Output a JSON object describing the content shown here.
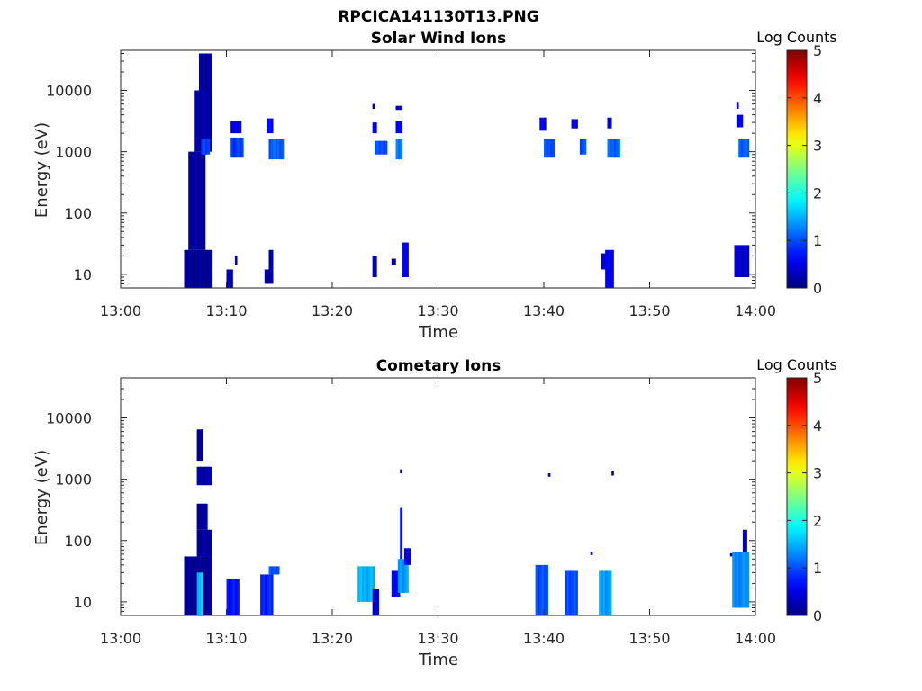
{
  "figure": {
    "title": "RPCICA141130T13.PNG"
  },
  "colors": {
    "colormap": "jet",
    "background": "#ffffff",
    "axes": "#262626"
  },
  "chart_data": [
    {
      "type": "heatmap",
      "title": "Solar Wind Ions",
      "xlabel": "Time",
      "ylabel": "Energy (eV)",
      "yscale": "log",
      "xlim": [
        "13:00",
        "14:00"
      ],
      "ylim": [
        6,
        45000
      ],
      "xticks": [
        "13:00",
        "13:10",
        "13:20",
        "13:30",
        "13:40",
        "13:50",
        "14:00"
      ],
      "yticks": [
        {
          "value": 10,
          "label": "10"
        },
        {
          "value": 100,
          "label": "100"
        },
        {
          "value": 1000,
          "label": "1000"
        },
        {
          "value": 10000,
          "label": "10000"
        }
      ],
      "colorbar": {
        "label": "Log Counts",
        "range": [
          0,
          5
        ],
        "ticks": [
          "0",
          "1",
          "2",
          "3",
          "4",
          "5"
        ]
      },
      "grid": false,
      "cell_seconds": 12,
      "cells": [
        {
          "t_start": "13:06:00",
          "t_end": "13:08:40",
          "e_min": 6,
          "e_max": 25,
          "logc": 0.1
        },
        {
          "t_start": "13:06:24",
          "t_end": "13:08:00",
          "e_min": 25,
          "e_max": 1000,
          "logc": 0.15
        },
        {
          "t_start": "13:07:00",
          "t_end": "13:08:36",
          "e_min": 1000,
          "e_max": 10000,
          "logc": 0.2
        },
        {
          "t_start": "13:07:24",
          "t_end": "13:08:36",
          "e_min": 10000,
          "e_max": 40000,
          "logc": 0.15
        },
        {
          "t_start": "13:07:36",
          "t_end": "13:08:24",
          "e_min": 900,
          "e_max": 1600,
          "logc": 0.9
        },
        {
          "t_start": "13:10:24",
          "t_end": "13:11:24",
          "e_min": 2000,
          "e_max": 3200,
          "logc": 0.5
        },
        {
          "t_start": "13:10:24",
          "t_end": "13:11:36",
          "e_min": 800,
          "e_max": 1700,
          "logc": 0.9
        },
        {
          "t_start": "13:10:00",
          "t_end": "13:10:36",
          "e_min": 6,
          "e_max": 12,
          "logc": 0.3
        },
        {
          "t_start": "13:10:48",
          "t_end": "13:11:00",
          "e_min": 14,
          "e_max": 20,
          "logc": 0.3
        },
        {
          "t_start": "13:13:48",
          "t_end": "13:14:24",
          "e_min": 2000,
          "e_max": 3500,
          "logc": 0.6
        },
        {
          "t_start": "13:14:00",
          "t_end": "13:15:24",
          "e_min": 750,
          "e_max": 1600,
          "logc": 1.1
        },
        {
          "t_start": "13:13:36",
          "t_end": "13:14:24",
          "e_min": 7,
          "e_max": 12,
          "logc": 0.2
        },
        {
          "t_start": "13:14:00",
          "t_end": "13:14:24",
          "e_min": 12,
          "e_max": 25,
          "logc": 0.2
        },
        {
          "t_start": "13:23:48",
          "t_end": "13:24:12",
          "e_min": 2000,
          "e_max": 3000,
          "logc": 0.5
        },
        {
          "t_start": "13:24:00",
          "t_end": "13:25:12",
          "e_min": 900,
          "e_max": 1500,
          "logc": 1.0
        },
        {
          "t_start": "13:23:48",
          "t_end": "13:24:00",
          "e_min": 5000,
          "e_max": 6000,
          "logc": 0.3
        },
        {
          "t_start": "13:23:48",
          "t_end": "13:24:12",
          "e_min": 9,
          "e_max": 20,
          "logc": 0.3
        },
        {
          "t_start": "13:26:00",
          "t_end": "13:26:36",
          "e_min": 2000,
          "e_max": 3200,
          "logc": 0.6
        },
        {
          "t_start": "13:26:00",
          "t_end": "13:26:36",
          "e_min": 750,
          "e_max": 1600,
          "logc": 1.2
        },
        {
          "t_start": "13:26:00",
          "t_end": "13:26:36",
          "e_min": 4800,
          "e_max": 5600,
          "logc": 0.3
        },
        {
          "t_start": "13:25:36",
          "t_end": "13:26:00",
          "e_min": 14,
          "e_max": 18,
          "logc": 0.3
        },
        {
          "t_start": "13:26:36",
          "t_end": "13:27:12",
          "e_min": 9,
          "e_max": 33,
          "logc": 0.6
        },
        {
          "t_start": "13:39:36",
          "t_end": "13:40:12",
          "e_min": 2200,
          "e_max": 3600,
          "logc": 0.6
        },
        {
          "t_start": "13:40:00",
          "t_end": "13:41:00",
          "e_min": 800,
          "e_max": 1600,
          "logc": 1.0
        },
        {
          "t_start": "13:42:36",
          "t_end": "13:43:12",
          "e_min": 2400,
          "e_max": 3400,
          "logc": 0.5
        },
        {
          "t_start": "13:43:24",
          "t_end": "13:44:00",
          "e_min": 900,
          "e_max": 1600,
          "logc": 1.0
        },
        {
          "t_start": "13:45:24",
          "t_end": "13:45:48",
          "e_min": 12,
          "e_max": 22,
          "logc": 0.4
        },
        {
          "t_start": "13:46:00",
          "t_end": "13:46:24",
          "e_min": 2400,
          "e_max": 3600,
          "logc": 0.5
        },
        {
          "t_start": "13:46:00",
          "t_end": "13:47:12",
          "e_min": 800,
          "e_max": 1600,
          "logc": 1.1
        },
        {
          "t_start": "13:45:48",
          "t_end": "13:46:36",
          "e_min": 6,
          "e_max": 25,
          "logc": 0.5
        },
        {
          "t_start": "13:58:12",
          "t_end": "13:58:48",
          "e_min": 2500,
          "e_max": 4000,
          "logc": 0.5
        },
        {
          "t_start": "13:58:24",
          "t_end": "13:59:24",
          "e_min": 800,
          "e_max": 1600,
          "logc": 1.1
        },
        {
          "t_start": "13:58:12",
          "t_end": "13:58:24",
          "e_min": 5000,
          "e_max": 6500,
          "logc": 0.3
        },
        {
          "t_start": "13:58:00",
          "t_end": "13:59:24",
          "e_min": 9,
          "e_max": 30,
          "logc": 0.4
        }
      ]
    },
    {
      "type": "heatmap",
      "title": "Cometary Ions",
      "xlabel": "Time",
      "ylabel": "Energy (eV)",
      "yscale": "log",
      "xlim": [
        "13:00",
        "14:00"
      ],
      "ylim": [
        6,
        45000
      ],
      "xticks": [
        "13:00",
        "13:10",
        "13:20",
        "13:30",
        "13:40",
        "13:50",
        "14:00"
      ],
      "yticks": [
        {
          "value": 10,
          "label": "10"
        },
        {
          "value": 100,
          "label": "100"
        },
        {
          "value": 1000,
          "label": "1000"
        },
        {
          "value": 10000,
          "label": "10000"
        }
      ],
      "colorbar": {
        "label": "Log Counts",
        "range": [
          0,
          5
        ],
        "ticks": [
          "0",
          "1",
          "2",
          "3",
          "4",
          "5"
        ]
      },
      "grid": false,
      "cell_seconds": 12,
      "cells": [
        {
          "t_start": "13:06:00",
          "t_end": "13:08:36",
          "e_min": 6,
          "e_max": 55,
          "logc": 0.1
        },
        {
          "t_start": "13:07:12",
          "t_end": "13:08:36",
          "e_min": 55,
          "e_max": 150,
          "logc": 0.15
        },
        {
          "t_start": "13:07:12",
          "t_end": "13:08:12",
          "e_min": 150,
          "e_max": 400,
          "logc": 0.15
        },
        {
          "t_start": "13:07:12",
          "t_end": "13:08:36",
          "e_min": 800,
          "e_max": 1600,
          "logc": 0.2
        },
        {
          "t_start": "13:07:12",
          "t_end": "13:07:48",
          "e_min": 2000,
          "e_max": 6500,
          "logc": 0.1
        },
        {
          "t_start": "13:07:12",
          "t_end": "13:07:48",
          "e_min": 6,
          "e_max": 30,
          "logc": 1.6
        },
        {
          "t_start": "13:10:00",
          "t_end": "13:11:12",
          "e_min": 6,
          "e_max": 24,
          "logc": 0.7
        },
        {
          "t_start": "13:13:12",
          "t_end": "13:14:24",
          "e_min": 6,
          "e_max": 28,
          "logc": 0.8
        },
        {
          "t_start": "13:14:00",
          "t_end": "13:15:00",
          "e_min": 28,
          "e_max": 38,
          "logc": 1.0
        },
        {
          "t_start": "13:22:24",
          "t_end": "13:24:00",
          "e_min": 10,
          "e_max": 38,
          "logc": 1.5
        },
        {
          "t_start": "13:23:48",
          "t_end": "13:24:24",
          "e_min": 6,
          "e_max": 16,
          "logc": 0.4
        },
        {
          "t_start": "13:25:36",
          "t_end": "13:26:24",
          "e_min": 12,
          "e_max": 32,
          "logc": 0.6
        },
        {
          "t_start": "13:26:12",
          "t_end": "13:27:12",
          "e_min": 14,
          "e_max": 50,
          "logc": 1.4
        },
        {
          "t_start": "13:26:24",
          "t_end": "13:26:36",
          "e_min": 50,
          "e_max": 340,
          "logc": 0.6
        },
        {
          "t_start": "13:26:48",
          "t_end": "13:27:24",
          "e_min": 40,
          "e_max": 75,
          "logc": 0.5
        },
        {
          "t_start": "13:26:24",
          "t_end": "13:26:36",
          "e_min": 1250,
          "e_max": 1450,
          "logc": 0.4
        },
        {
          "t_start": "13:39:12",
          "t_end": "13:40:24",
          "e_min": 6,
          "e_max": 40,
          "logc": 1.0
        },
        {
          "t_start": "13:42:00",
          "t_end": "13:43:12",
          "e_min": 6,
          "e_max": 32,
          "logc": 1.0
        },
        {
          "t_start": "13:45:12",
          "t_end": "13:46:24",
          "e_min": 6,
          "e_max": 32,
          "logc": 1.4
        },
        {
          "t_start": "13:40:24",
          "t_end": "13:40:36",
          "e_min": 1100,
          "e_max": 1250,
          "logc": 0.4
        },
        {
          "t_start": "13:46:24",
          "t_end": "13:46:36",
          "e_min": 1150,
          "e_max": 1350,
          "logc": 0.4
        },
        {
          "t_start": "13:44:24",
          "t_end": "13:44:36",
          "e_min": 58,
          "e_max": 66,
          "logc": 0.5
        },
        {
          "t_start": "13:57:36",
          "t_end": "13:57:48",
          "e_min": 55,
          "e_max": 62,
          "logc": 0.5
        },
        {
          "t_start": "13:57:48",
          "t_end": "13:59:24",
          "e_min": 8,
          "e_max": 65,
          "logc": 1.3
        },
        {
          "t_start": "13:58:48",
          "t_end": "13:59:12",
          "e_min": 65,
          "e_max": 150,
          "logc": 0.4
        }
      ]
    }
  ]
}
